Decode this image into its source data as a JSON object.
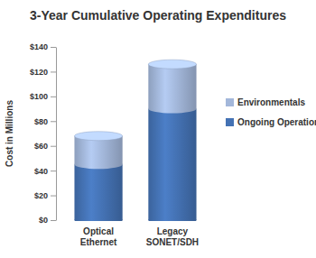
{
  "chart_data": {
    "type": "bar",
    "title": "3-Year Cumulative Operating Expenditures",
    "y_label": "Cost in Millions",
    "categories": [
      "Optical Ethernet",
      "Legacy SONET/SDH"
    ],
    "series": [
      {
        "name": "Ongoing Operations",
        "color": "#4472b4",
        "values": [
          45,
          90
        ]
      },
      {
        "name": "Environmentals",
        "color": "#a3b7da",
        "values": [
          23,
          36
        ]
      }
    ],
    "stacked": true,
    "ylim": [
      0,
      140
    ],
    "yticks": [
      {
        "value": 0,
        "label": "$0"
      },
      {
        "value": 20,
        "label": "$20"
      },
      {
        "value": 40,
        "label": "$40"
      },
      {
        "value": 60,
        "label": "$60"
      },
      {
        "value": 80,
        "label": "$80"
      },
      {
        "value": 100,
        "label": "$100"
      },
      {
        "value": 120,
        "label": "$120"
      },
      {
        "value": 140,
        "label": "$140"
      }
    ],
    "grid": false,
    "legend": "right"
  }
}
